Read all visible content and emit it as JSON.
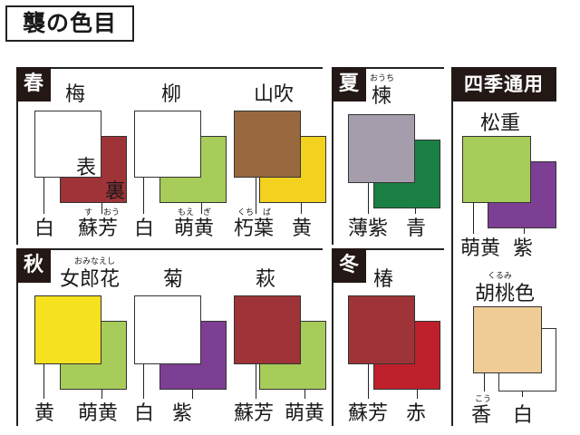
{
  "page_title": "襲の色目",
  "seasons": {
    "spring": {
      "label": "春",
      "items": [
        {
          "name": "梅",
          "front_color": "#ffffff",
          "back_color": "#9e3438",
          "front_label": "白",
          "back_label": "蘇芳",
          "back_ruby": [
            "す",
            "おう"
          ],
          "omote": "表",
          "ura": "裏"
        },
        {
          "name": "柳",
          "front_color": "#ffffff",
          "back_color": "#a8cc5a",
          "front_label": "白",
          "back_label": "萌黄",
          "back_ruby": [
            "もえ",
            "ぎ"
          ]
        },
        {
          "name": "山吹",
          "front_color": "#98693f",
          "back_color": "#f2d21f",
          "front_label": "朽葉",
          "front_ruby": [
            "くち",
            "ば"
          ],
          "back_label": "黄"
        }
      ]
    },
    "summer": {
      "label": "夏",
      "items": [
        {
          "name": "楝",
          "name_ruby": "おうち",
          "front_color": "#a69dac",
          "back_color": "#1a8043",
          "front_label": "薄紫",
          "back_label": "青"
        }
      ]
    },
    "autumn": {
      "label": "秋",
      "items": [
        {
          "name": "女郎花",
          "name_ruby": "おみなえし",
          "front_color": "#f5e11e",
          "back_color": "#a8cc5a",
          "front_label": "黄",
          "back_label": "萌黄"
        },
        {
          "name": "菊",
          "front_color": "#ffffff",
          "back_color": "#7d3f93",
          "front_label": "白",
          "back_label": "紫"
        },
        {
          "name": "萩",
          "front_color": "#9e3438",
          "back_color": "#a8cc5a",
          "front_label": "蘇芳",
          "back_label": "萌黄"
        }
      ]
    },
    "winter": {
      "label": "冬",
      "items": [
        {
          "name": "椿",
          "front_color": "#9e3438",
          "back_color": "#c0202b",
          "front_label": "蘇芳",
          "back_label": "赤"
        }
      ]
    },
    "allseason": {
      "label": "四季通用",
      "items": [
        {
          "name": "松重",
          "front_color": "#a8cc5a",
          "back_color": "#7d3f93",
          "front_label": "萌黄",
          "back_label": "紫"
        },
        {
          "name": "胡桃色",
          "name_ruby": "くるみ",
          "front_color": "#efcc96",
          "back_color": "#ffffff",
          "front_label": "香",
          "front_ruby": [
            "こう"
          ],
          "back_label": "白"
        }
      ]
    }
  }
}
